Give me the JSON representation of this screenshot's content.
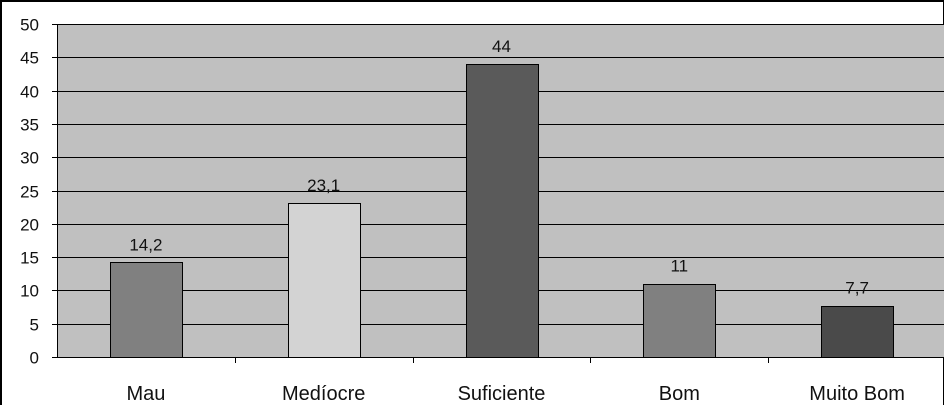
{
  "chart_data": {
    "type": "bar",
    "categories": [
      "Mau",
      "Medíocre",
      "Suficiente",
      "Bom",
      "Muito Bom"
    ],
    "values": [
      14.2,
      23.1,
      44,
      11,
      7.7
    ],
    "data_labels": [
      "14,2",
      "23,1",
      "44",
      "11",
      "7,7"
    ],
    "ylim": [
      0,
      50
    ],
    "yticks": [
      0,
      5,
      10,
      15,
      20,
      25,
      30,
      35,
      40,
      45,
      50
    ],
    "grid": true,
    "plot_background": "#c0c0c0",
    "bar_colors": [
      "#808080",
      "#d3d3d3",
      "#5a5a5a",
      "#808080",
      "#4a4a4a"
    ]
  }
}
